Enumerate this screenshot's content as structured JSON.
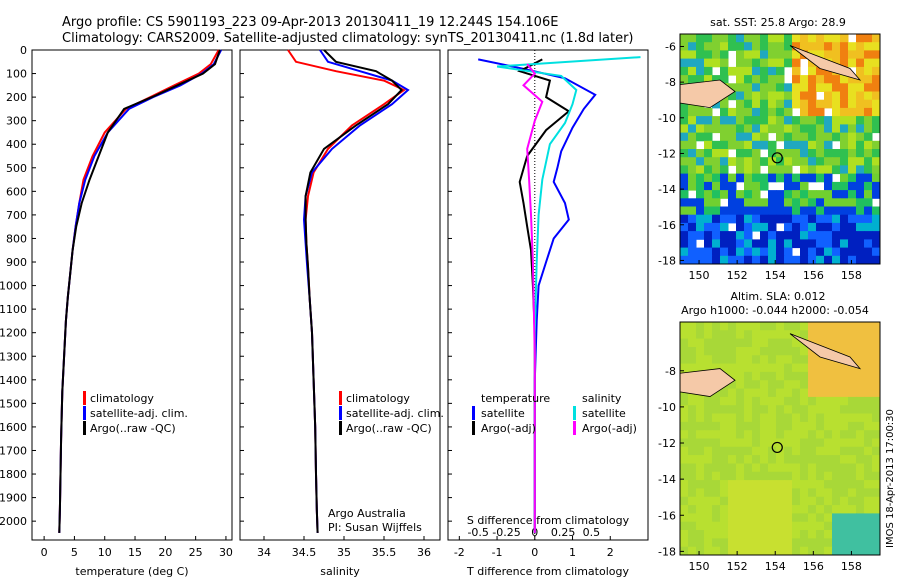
{
  "header": {
    "line1": "Argo profile: CS 5901193_223 09-Apr-2013 20130411_19 12.244S 154.106E",
    "line2": "Climatology: CARS2009. Satellite-adjusted climatology: synTS_20130411.nc (1.8d later)"
  },
  "chart_data": [
    {
      "type": "line",
      "panel": "temperature",
      "xlabel": "temperature (deg C)",
      "ylabel": "",
      "xlim": [
        -2,
        31
      ],
      "ylim": [
        2080,
        0
      ],
      "xticks": [
        0,
        5,
        10,
        15,
        20,
        25,
        30
      ],
      "yticks": [
        0,
        100,
        200,
        300,
        400,
        500,
        600,
        700,
        800,
        900,
        1000,
        1100,
        1200,
        1300,
        1400,
        1500,
        1600,
        1700,
        1800,
        1900,
        2000
      ],
      "legend_position": "lower-left",
      "series": [
        {
          "name": "climatology",
          "color": "#ff0000",
          "x": [
            28.8,
            27.5,
            25.5,
            21.5,
            17.5,
            13.5,
            10.0,
            8.0,
            6.5,
            5.8,
            5.2,
            4.7,
            4.3,
            3.9,
            3.6,
            3.4,
            3.2,
            3.0,
            2.9,
            2.8,
            2.7,
            2.6,
            2.5
          ],
          "y": [
            0,
            60,
            100,
            150,
            200,
            250,
            350,
            450,
            550,
            650,
            750,
            850,
            950,
            1050,
            1150,
            1250,
            1350,
            1450,
            1550,
            1650,
            1800,
            1950,
            2050
          ]
        },
        {
          "name": "satellite-adj. clim.",
          "color": "#0000ff",
          "x": [
            29.2,
            28.0,
            26.0,
            22.5,
            18.0,
            14.0,
            10.5,
            8.3,
            6.8,
            5.8,
            5.2,
            4.7,
            4.3,
            3.9,
            3.6,
            3.4,
            3.2,
            3.0,
            2.9,
            2.8,
            2.7,
            2.6,
            2.5
          ],
          "y": [
            0,
            60,
            100,
            150,
            200,
            250,
            350,
            450,
            550,
            650,
            750,
            850,
            950,
            1050,
            1150,
            1250,
            1350,
            1450,
            1550,
            1650,
            1800,
            1950,
            2050
          ]
        },
        {
          "name": "Argo(..raw -QC)",
          "color": "#000000",
          "x": [
            29.0,
            28.2,
            26.2,
            22.0,
            17.8,
            13.2,
            10.5,
            9.0,
            7.5,
            6.2,
            5.3,
            4.7,
            4.3,
            3.9,
            3.6,
            3.4,
            3.2,
            3.0,
            2.9,
            2.8,
            2.7,
            2.6,
            2.5
          ],
          "y": [
            0,
            60,
            100,
            150,
            200,
            250,
            350,
            450,
            550,
            650,
            750,
            850,
            950,
            1050,
            1150,
            1250,
            1350,
            1450,
            1550,
            1650,
            1800,
            1950,
            2050
          ]
        }
      ]
    },
    {
      "type": "line",
      "panel": "salinity",
      "xlabel": "salinity",
      "xlim": [
        33.7,
        36.2
      ],
      "ylim": [
        2080,
        0
      ],
      "xticks": [
        34,
        34.5,
        35,
        35.5,
        36
      ],
      "legend_position": "lower-right",
      "annotation": [
        "Argo Australia",
        "PI: Susan Wijffels"
      ],
      "series": [
        {
          "name": "climatology",
          "color": "#ff0000",
          "x": [
            34.3,
            34.4,
            34.9,
            35.5,
            35.75,
            35.5,
            35.1,
            34.8,
            34.62,
            34.55,
            34.52,
            34.53,
            34.55,
            34.57,
            34.6,
            34.62,
            34.64,
            34.65,
            34.66,
            34.67
          ],
          "y": [
            0,
            50,
            90,
            130,
            170,
            230,
            320,
            420,
            520,
            620,
            720,
            820,
            920,
            1050,
            1200,
            1400,
            1600,
            1800,
            1950,
            2050
          ]
        },
        {
          "name": "satellite-adj. clim.",
          "color": "#0000ff",
          "x": [
            34.7,
            34.8,
            35.2,
            35.6,
            35.8,
            35.6,
            35.2,
            34.85,
            34.6,
            34.52,
            34.5,
            34.52,
            34.54,
            34.57,
            34.6,
            34.62,
            34.64,
            34.65,
            34.66,
            34.67
          ],
          "y": [
            0,
            50,
            90,
            130,
            170,
            230,
            320,
            420,
            520,
            620,
            720,
            820,
            920,
            1050,
            1200,
            1400,
            1600,
            1800,
            1950,
            2050
          ]
        },
        {
          "name": "Argo(..raw -QC)",
          "color": "#000000",
          "x": [
            34.75,
            34.9,
            35.4,
            35.6,
            35.72,
            35.55,
            35.15,
            34.75,
            34.58,
            34.52,
            34.52,
            34.53,
            34.55,
            34.57,
            34.6,
            34.62,
            34.64,
            34.65,
            34.66,
            34.67
          ],
          "y": [
            0,
            50,
            90,
            130,
            170,
            230,
            320,
            420,
            520,
            620,
            720,
            820,
            920,
            1050,
            1200,
            1400,
            1600,
            1800,
            1950,
            2050
          ]
        }
      ]
    },
    {
      "type": "line",
      "panel": "difference",
      "xlabel": "T difference from climatology",
      "xlabel_top": "S difference from climatology",
      "xlim": [
        -2.3,
        3.0
      ],
      "ylim": [
        2080,
        0
      ],
      "xticks": [
        -2,
        -1,
        0,
        1,
        2
      ],
      "xticks_top_labels": [
        "-0.5",
        "-0.25",
        "0",
        "0.25",
        "0.5"
      ],
      "legend_headers": [
        "temperature",
        "salinity"
      ],
      "series": [
        {
          "name": "satellite",
          "group": "temperature",
          "color": "#0000ff",
          "x": [
            -1.5,
            -0.3,
            0.8,
            1.6,
            1.3,
            1.0,
            0.7,
            0.6,
            0.5,
            0.8,
            0.9,
            0.5,
            0.3,
            0.1,
            0.05,
            0.0,
            0.0,
            0.0
          ],
          "y": [
            40,
            80,
            120,
            190,
            250,
            330,
            430,
            500,
            560,
            650,
            720,
            800,
            900,
            1000,
            1150,
            1400,
            1700,
            2050
          ]
        },
        {
          "name": "Argo(-adj)",
          "group": "temperature",
          "color": "#000000",
          "x": [
            0.2,
            -0.4,
            0.4,
            0.3,
            0.9,
            0.3,
            -0.2,
            -0.4,
            -0.3,
            -0.2,
            -0.1,
            -0.05,
            0.0,
            0.0,
            0.0
          ],
          "y": [
            40,
            90,
            130,
            200,
            260,
            340,
            450,
            560,
            650,
            750,
            850,
            1000,
            1200,
            1600,
            2050
          ]
        },
        {
          "name": "satellite",
          "group": "salinity",
          "color": "#00e0e0",
          "x": [
            2.8,
            -1.0,
            0.7,
            1.1,
            1.0,
            0.8,
            0.4,
            0.2,
            0.1,
            0.05,
            0.0,
            0.0,
            0.0
          ],
          "y": [
            30,
            70,
            110,
            170,
            230,
            310,
            400,
            550,
            700,
            900,
            1200,
            1600,
            2050
          ]
        },
        {
          "name": "Argo(-adj)",
          "group": "salinity",
          "color": "#ff00ff",
          "x": [
            -0.2,
            0.0,
            -0.3,
            0.2,
            0.0,
            -0.2,
            -0.15,
            -0.1,
            -0.05,
            0.0,
            0.0
          ],
          "y": [
            60,
            100,
            150,
            220,
            300,
            420,
            550,
            700,
            900,
            1300,
            2050
          ]
        }
      ]
    },
    {
      "type": "heatmap",
      "panel": "sst-map",
      "title": "sat. SST: 25.8  Argo: 28.9",
      "xlim": [
        149,
        159.5
      ],
      "ylim": [
        -18.2,
        -5.3
      ],
      "xticks": [
        150,
        152,
        154,
        156,
        158
      ],
      "yticks": [
        -6,
        -8,
        -10,
        -12,
        -14,
        -16,
        -18
      ],
      "argo_position": {
        "lon": 154.106,
        "lat": -12.244
      }
    },
    {
      "type": "heatmap",
      "panel": "sla-map",
      "title": "Altim. SLA: 0.012",
      "subtitle": "Argo h1000: -0.044 h2000: -0.054",
      "xlim": [
        149,
        159.5
      ],
      "ylim": [
        -18.2,
        -5.3
      ],
      "xticks": [
        150,
        152,
        154,
        156,
        158
      ],
      "yticks": [
        -8,
        -10,
        -12,
        -14,
        -16,
        -18
      ],
      "argo_position": {
        "lon": 154.106,
        "lat": -12.244
      }
    }
  ],
  "labels": {
    "ytick_labels": [
      "0",
      "100",
      "200",
      "300",
      "400",
      "500",
      "600",
      "700",
      "800",
      "900",
      "1000",
      "1100",
      "1200",
      "1300",
      "1400",
      "1500",
      "1600",
      "1700",
      "1800",
      "1900",
      "2000"
    ],
    "legend_clim": "climatology",
    "legend_sat": "satellite-adj. clim.",
    "legend_argo": "Argo(..raw -QC)",
    "legend_temp_header": "temperature",
    "legend_sal_header": "salinity",
    "legend_satellite": "satellite",
    "legend_argo_adj": "Argo(-adj)",
    "annot_line1": "Argo Australia",
    "annot_line2": "PI: Susan Wijffels",
    "sst_title": "sat. SST: 25.8  Argo: 28.9",
    "sla_title": "Altim. SLA: 0.012",
    "sla_subtitle": "Argo h1000: -0.044 h2000: -0.054",
    "side_stamp": "IMOS 18-Apr-2013 17:00:30"
  },
  "colors": {
    "clim": "#ff0000",
    "sat": "#0000ff",
    "argo": "#000000",
    "sal_sat": "#00e0e0",
    "sal_argo": "#ff00ff",
    "land": "#f5c9a8"
  }
}
